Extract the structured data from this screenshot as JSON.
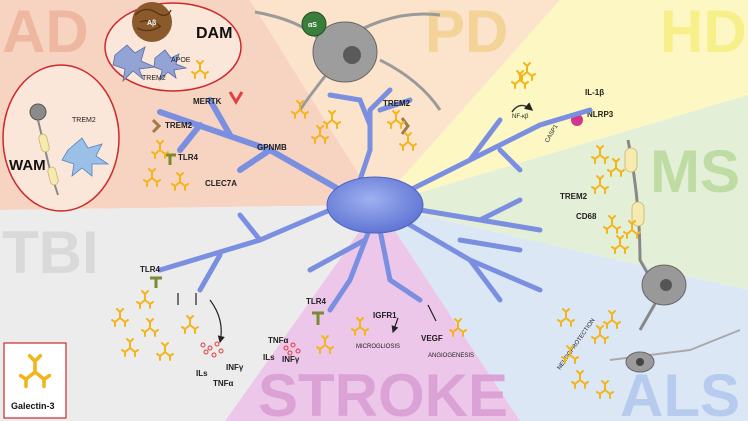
{
  "regions": {
    "ad": {
      "label": "AD",
      "color": "#f7d4c2",
      "text_color": "#eeb7a0"
    },
    "pd": {
      "label": "PD",
      "color": "#fbe3cc",
      "text_color": "#f3d398"
    },
    "hd": {
      "label": "HD",
      "color": "#fcf7c3",
      "text_color": "#f7ef8a"
    },
    "ms": {
      "label": "MS",
      "color": "#e4efd7",
      "text_color": "#bfdca5"
    },
    "tbi": {
      "label": "TBI",
      "color": "#ececec",
      "text_color": "#d9d9d9"
    },
    "stroke": {
      "label": "STROKE",
      "color": "#ecc7e9",
      "text_color": "#dba2d6"
    },
    "als": {
      "label": "ALS",
      "color": "#dce7f6",
      "text_color": "#b7cbee"
    }
  },
  "ad_insets": {
    "dam": {
      "title": "DAM",
      "plaque": "Aβ",
      "apoe": "APOE",
      "trem2": "TREM2"
    },
    "wam": {
      "title": "WAM",
      "trem2": "TREM2"
    }
  },
  "receptors": {
    "mertk": "MERTK",
    "trem2_ad": "TREM2",
    "tlr4_ad": "TLR4",
    "gpnmb": "GPNMB",
    "clec7a": "CLEC7A",
    "trem2_pd": "TREM2",
    "trem2_ms": "TREM2",
    "cd68": "CD68",
    "tlr4_tbi": "TLR4",
    "tlr4_stroke": "TLR4",
    "igfr1": "IGFR1"
  },
  "pd_inset": {
    "alpha_syn": "αS"
  },
  "hd_pathway": {
    "nfkb": "NF-κβ",
    "il1b": "IL-1β",
    "nlrp3": "NLRP3",
    "casp1": "CASP1"
  },
  "tbi_outputs": {
    "infg": "INFγ",
    "ils": "ILs",
    "tnfa": "TNFα"
  },
  "stroke_outputs": {
    "tnfa": "TNFα",
    "ils": "ILs",
    "infg": "INFγ",
    "microgliosis": "MICROGLIOSIS",
    "vegf": "VEGF",
    "angiogenesis": "ANGIOGENESIS"
  },
  "als_outputs": {
    "neuroprotection": "NEUROPROTECTION"
  },
  "legend": {
    "label": "Galectin-3",
    "icon_color": "#f2b51c"
  },
  "colors": {
    "microglia": "#7b8fe0",
    "microglia_dark": "#4d63c4",
    "galectin": "#f2b51c",
    "cytokine": "#e53939",
    "inset_border": "#cc2a2a"
  }
}
